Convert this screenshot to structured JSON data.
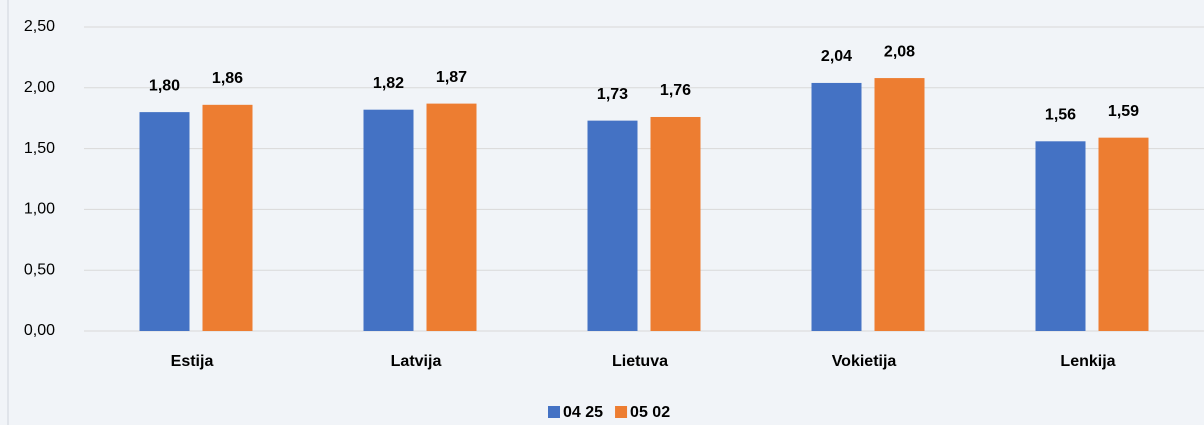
{
  "chart_data": {
    "type": "bar",
    "categories": [
      "Estija",
      "Latvija",
      "Lietuva",
      "Vokietija",
      "Lenkija"
    ],
    "series": [
      {
        "name": "04 25",
        "color": "#4472c4",
        "values": [
          1.8,
          1.82,
          1.73,
          2.04,
          1.56
        ],
        "value_labels": [
          "1,80",
          "1,82",
          "1,73",
          "2,04",
          "1,56"
        ]
      },
      {
        "name": "05 02",
        "color": "#ed7d31",
        "values": [
          1.86,
          1.87,
          1.76,
          2.08,
          1.59
        ],
        "value_labels": [
          "1,86",
          "1,87",
          "1,76",
          "2,08",
          "1,59"
        ]
      }
    ],
    "ylim": [
      0,
      2.5
    ],
    "yticks": [
      {
        "value": 0,
        "label": "0,00"
      },
      {
        "value": 0.5,
        "label": "0,50"
      },
      {
        "value": 1,
        "label": "1,00"
      },
      {
        "value": 1.5,
        "label": "1,50"
      },
      {
        "value": 2,
        "label": "2,00"
      },
      {
        "value": 2.5,
        "label": "2,50"
      }
    ],
    "grid": true,
    "legend": "bottom"
  }
}
